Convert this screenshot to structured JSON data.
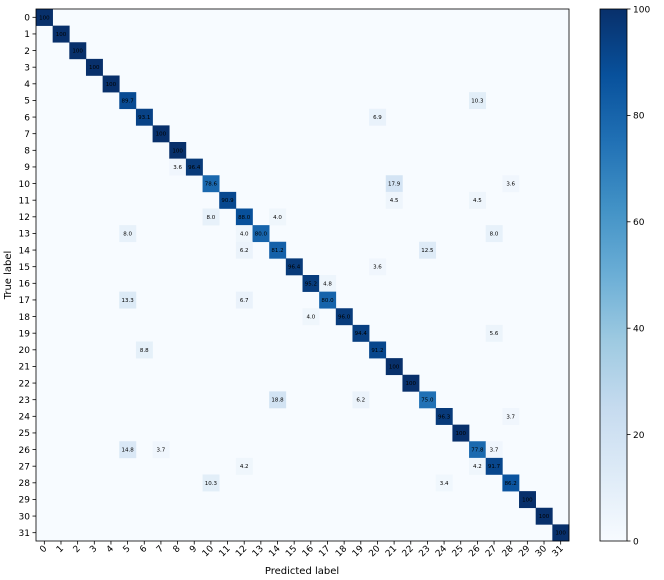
{
  "chart_data": {
    "type": "heatmap",
    "title": "",
    "xlabel": "Predicted label",
    "ylabel": "True label",
    "labels": [
      "0",
      "1",
      "2",
      "3",
      "4",
      "5",
      "6",
      "7",
      "8",
      "9",
      "10",
      "11",
      "12",
      "13",
      "14",
      "15",
      "16",
      "17",
      "18",
      "19",
      "20",
      "21",
      "22",
      "23",
      "24",
      "25",
      "26",
      "27",
      "28",
      "29",
      "30",
      "31"
    ],
    "colormap": "Blues",
    "vmin": 0,
    "vmax": 100,
    "colorbar_ticks": [
      0,
      20,
      40,
      60,
      80,
      100
    ],
    "grid": false,
    "cells": [
      {
        "true": 0,
        "pred": 0,
        "value": 100,
        "label": "100"
      },
      {
        "true": 1,
        "pred": 1,
        "value": 100,
        "label": "100"
      },
      {
        "true": 2,
        "pred": 2,
        "value": 100,
        "label": "100"
      },
      {
        "true": 3,
        "pred": 3,
        "value": 100,
        "label": "100"
      },
      {
        "true": 4,
        "pred": 4,
        "value": 100,
        "label": "100"
      },
      {
        "true": 5,
        "pred": 5,
        "value": 89.7,
        "label": "89.7"
      },
      {
        "true": 5,
        "pred": 26,
        "value": 10.3,
        "label": "10.3"
      },
      {
        "true": 6,
        "pred": 6,
        "value": 93.1,
        "label": "93.1"
      },
      {
        "true": 6,
        "pred": 20,
        "value": 6.9,
        "label": "6.9"
      },
      {
        "true": 7,
        "pred": 7,
        "value": 100,
        "label": "100"
      },
      {
        "true": 8,
        "pred": 8,
        "value": 100,
        "label": "100"
      },
      {
        "true": 9,
        "pred": 8,
        "value": 3.6,
        "label": "3.6"
      },
      {
        "true": 9,
        "pred": 9,
        "value": 96.4,
        "label": "96.4"
      },
      {
        "true": 10,
        "pred": 10,
        "value": 78.6,
        "label": "78.6"
      },
      {
        "true": 10,
        "pred": 21,
        "value": 17.9,
        "label": "17.9"
      },
      {
        "true": 10,
        "pred": 28,
        "value": 3.6,
        "label": "3.6"
      },
      {
        "true": 11,
        "pred": 11,
        "value": 90.9,
        "label": "90.9"
      },
      {
        "true": 11,
        "pred": 21,
        "value": 4.5,
        "label": "4.5"
      },
      {
        "true": 11,
        "pred": 26,
        "value": 4.5,
        "label": "4.5"
      },
      {
        "true": 12,
        "pred": 10,
        "value": 8.0,
        "label": "8.0"
      },
      {
        "true": 12,
        "pred": 12,
        "value": 88.0,
        "label": "88.0"
      },
      {
        "true": 12,
        "pred": 14,
        "value": 4.0,
        "label": "4.0"
      },
      {
        "true": 13,
        "pred": 5,
        "value": 8.0,
        "label": "8.0"
      },
      {
        "true": 13,
        "pred": 12,
        "value": 4.0,
        "label": "4.0"
      },
      {
        "true": 13,
        "pred": 13,
        "value": 80.0,
        "label": "80.0"
      },
      {
        "true": 13,
        "pred": 27,
        "value": 8.0,
        "label": "8.0"
      },
      {
        "true": 14,
        "pred": 12,
        "value": 6.2,
        "label": "6.2"
      },
      {
        "true": 14,
        "pred": 14,
        "value": 81.2,
        "label": "81.2"
      },
      {
        "true": 14,
        "pred": 23,
        "value": 12.5,
        "label": "12.5"
      },
      {
        "true": 15,
        "pred": 15,
        "value": 96.4,
        "label": "96.4"
      },
      {
        "true": 15,
        "pred": 20,
        "value": 3.6,
        "label": "3.6"
      },
      {
        "true": 16,
        "pred": 16,
        "value": 95.2,
        "label": "95.2"
      },
      {
        "true": 16,
        "pred": 17,
        "value": 4.8,
        "label": "4.8"
      },
      {
        "true": 17,
        "pred": 5,
        "value": 13.3,
        "label": "13.3"
      },
      {
        "true": 17,
        "pred": 12,
        "value": 6.7,
        "label": "6.7"
      },
      {
        "true": 17,
        "pred": 17,
        "value": 80.0,
        "label": "80.0"
      },
      {
        "true": 18,
        "pred": 16,
        "value": 4.0,
        "label": "4.0"
      },
      {
        "true": 18,
        "pred": 18,
        "value": 96.0,
        "label": "96.0"
      },
      {
        "true": 19,
        "pred": 19,
        "value": 94.4,
        "label": "94.4"
      },
      {
        "true": 19,
        "pred": 27,
        "value": 5.6,
        "label": "5.6"
      },
      {
        "true": 20,
        "pred": 6,
        "value": 8.8,
        "label": "8.8"
      },
      {
        "true": 20,
        "pred": 20,
        "value": 91.2,
        "label": "91.2"
      },
      {
        "true": 21,
        "pred": 21,
        "value": 100,
        "label": "100"
      },
      {
        "true": 22,
        "pred": 22,
        "value": 100,
        "label": "100"
      },
      {
        "true": 23,
        "pred": 14,
        "value": 18.8,
        "label": "18.8"
      },
      {
        "true": 23,
        "pred": 19,
        "value": 6.2,
        "label": "6.2"
      },
      {
        "true": 23,
        "pred": 23,
        "value": 75.0,
        "label": "75.0"
      },
      {
        "true": 24,
        "pred": 24,
        "value": 96.3,
        "label": "96.3"
      },
      {
        "true": 24,
        "pred": 28,
        "value": 3.7,
        "label": "3.7"
      },
      {
        "true": 25,
        "pred": 25,
        "value": 100,
        "label": "100"
      },
      {
        "true": 26,
        "pred": 5,
        "value": 14.8,
        "label": "14.8"
      },
      {
        "true": 26,
        "pred": 7,
        "value": 3.7,
        "label": "3.7"
      },
      {
        "true": 26,
        "pred": 26,
        "value": 77.8,
        "label": "77.8"
      },
      {
        "true": 26,
        "pred": 27,
        "value": 3.7,
        "label": "3.7"
      },
      {
        "true": 27,
        "pred": 12,
        "value": 4.2,
        "label": "4.2"
      },
      {
        "true": 27,
        "pred": 26,
        "value": 4.2,
        "label": "4.2"
      },
      {
        "true": 27,
        "pred": 27,
        "value": 91.7,
        "label": "91.7"
      },
      {
        "true": 28,
        "pred": 10,
        "value": 10.3,
        "label": "10.3"
      },
      {
        "true": 28,
        "pred": 24,
        "value": 3.4,
        "label": "3.4"
      },
      {
        "true": 28,
        "pred": 28,
        "value": 86.2,
        "label": "86.2"
      },
      {
        "true": 29,
        "pred": 29,
        "value": 100,
        "label": "100"
      },
      {
        "true": 30,
        "pred": 30,
        "value": 100,
        "label": "100"
      },
      {
        "true": 31,
        "pred": 31,
        "value": 100,
        "label": "100"
      }
    ]
  }
}
